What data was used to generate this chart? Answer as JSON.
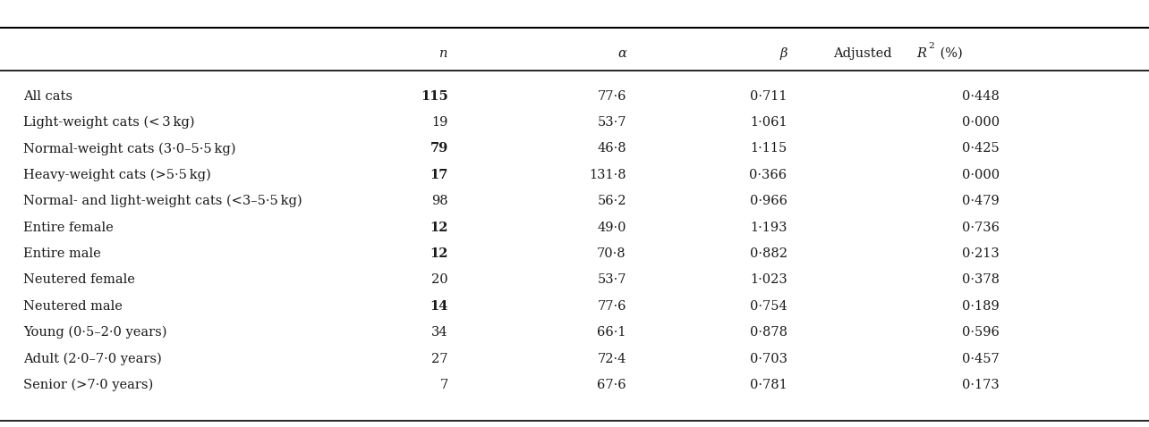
{
  "rows": [
    [
      "All cats",
      "115",
      "77·6",
      "0·711",
      "0·448"
    ],
    [
      "Light-weight cats (< 3 kg)",
      "19",
      "53·7",
      "1·061",
      "0·000"
    ],
    [
      "Normal-weight cats (3·0–5·5 kg)",
      "79",
      "46·8",
      "1·115",
      "0·425"
    ],
    [
      "Heavy-weight cats (>5·5 kg)",
      "17",
      "131·8",
      "0·366",
      "0·000"
    ],
    [
      "Normal- and light-weight cats (<3–5·5 kg)",
      "98",
      "56·2",
      "0·966",
      "0·479"
    ],
    [
      "Entire female",
      "12",
      "49·0",
      "1·193",
      "0·736"
    ],
    [
      "Entire male",
      "12",
      "70·8",
      "0·882",
      "0·213"
    ],
    [
      "Neutered female",
      "20",
      "53·7",
      "1·023",
      "0·378"
    ],
    [
      "Neutered male",
      "14",
      "77·6",
      "0·754",
      "0·189"
    ],
    [
      "Young (0·5–2·0 years)",
      "34",
      "66·1",
      "0·878",
      "0·596"
    ],
    [
      "Adult (2·0–7·0 years)",
      "27",
      "72·4",
      "0·703",
      "0·457"
    ],
    [
      "Senior (>7·0 years)",
      "7",
      "67·6",
      "0·781",
      "0·173"
    ]
  ],
  "bold_n_rows": [
    0,
    2,
    3,
    5,
    6,
    8
  ],
  "background_color": "#ffffff",
  "text_color": "#1a1a1a",
  "fontsize": 10.5,
  "fig_width": 12.84,
  "fig_height": 4.78
}
